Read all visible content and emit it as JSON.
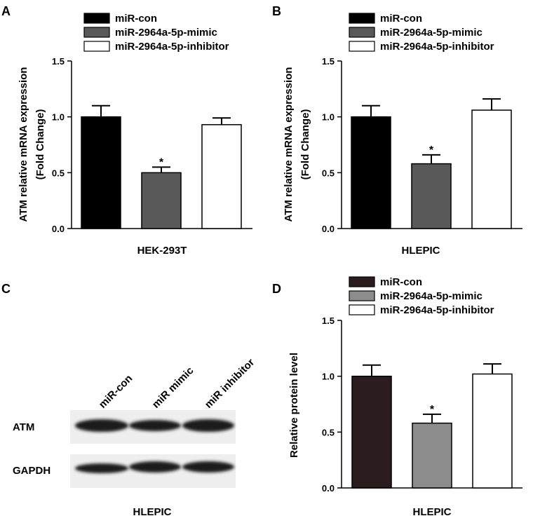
{
  "chart_data": [
    {
      "type": "bar",
      "panel_letter": "A",
      "legend": [
        "miR-con",
        "miR-2964a-5p-mimic",
        "miR-2964a-5p-inhibitor"
      ],
      "categories": [
        "miR-con",
        "miR-2964a-5p-mimic",
        "miR-2964a-5p-inhibitor"
      ],
      "values": [
        1.0,
        0.5,
        0.93
      ],
      "errors": [
        0.1,
        0.05,
        0.06
      ],
      "significance": [
        "",
        "*",
        ""
      ],
      "colors": [
        "#000000",
        "#595959",
        "#ffffff"
      ],
      "ylabel": "ATM relative mRNA expression",
      "ylabel2": "(Fold Change)",
      "xlabel": "HEK-293T",
      "ylim": [
        0,
        1.5
      ],
      "yticks": [
        "0.0",
        "0.5",
        "1.0",
        "1.5"
      ],
      "legend_position": "top",
      "grid": false
    },
    {
      "type": "bar",
      "panel_letter": "B",
      "legend": [
        "miR-con",
        "miR-2964a-5p-mimic",
        "miR-2964a-5p-inhibitor"
      ],
      "categories": [
        "miR-con",
        "miR-2964a-5p-mimic",
        "miR-2964a-5p-inhibitor"
      ],
      "values": [
        1.0,
        0.58,
        1.06
      ],
      "errors": [
        0.1,
        0.08,
        0.1
      ],
      "significance": [
        "",
        "*",
        ""
      ],
      "colors": [
        "#000000",
        "#595959",
        "#ffffff"
      ],
      "ylabel": "ATM relative mRNA expression",
      "ylabel2": "(Fold Change)",
      "xlabel": "HLEPIC",
      "ylim": [
        0,
        1.5
      ],
      "yticks": [
        "0.0",
        "0.5",
        "1.0",
        "1.5"
      ],
      "legend_position": "top",
      "grid": false
    },
    {
      "type": "bar",
      "panel_letter": "D",
      "legend": [
        "miR-con",
        "miR-2964a-5p-mimic",
        "miR-2964a-5p-inhibitor"
      ],
      "categories": [
        "miR-con",
        "miR-2964a-5p-mimic",
        "miR-2964a-5p-inhibitor"
      ],
      "values": [
        1.0,
        0.58,
        1.02
      ],
      "errors": [
        0.1,
        0.08,
        0.09
      ],
      "significance": [
        "",
        "*",
        ""
      ],
      "colors": [
        "#2b1d1d",
        "#8c8c8c",
        "#ffffff"
      ],
      "ylabel": "Relative protein level",
      "ylabel2": "",
      "xlabel": "HLEPIC",
      "ylim": [
        0,
        1.5
      ],
      "yticks": [
        "0.0",
        "0.5",
        "1.0",
        "1.5"
      ],
      "legend_position": "top",
      "grid": false
    }
  ],
  "blot": {
    "panel_letter": "C",
    "lanes": [
      "miR-con",
      "miR mimic",
      "miR inhibitor"
    ],
    "rows": [
      "ATM",
      "GAPDH"
    ],
    "caption": "HLEPIC"
  }
}
